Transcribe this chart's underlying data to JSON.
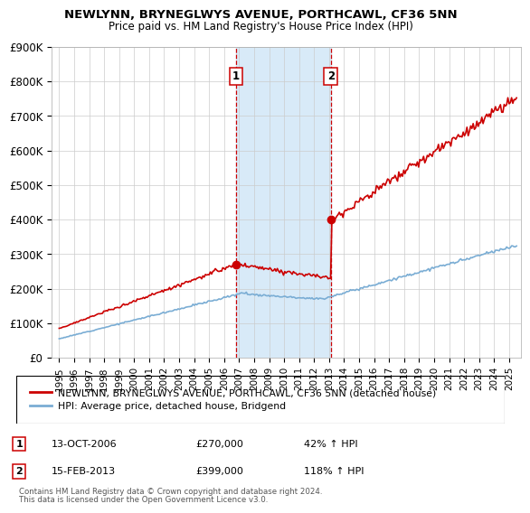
{
  "title": "NEWLYNN, BRYNEGLWYS AVENUE, PORTHCAWL, CF36 5NN",
  "subtitle": "Price paid vs. HM Land Registry's House Price Index (HPI)",
  "legend_line1": "NEWLYNN, BRYNEGLWYS AVENUE, PORTHCAWL, CF36 5NN (detached house)",
  "legend_line2": "HPI: Average price, detached house, Bridgend",
  "transaction1_label": "1",
  "transaction1_date": "13-OCT-2006",
  "transaction1_price": "£270,000",
  "transaction1_hpi": "42% ↑ HPI",
  "transaction1_year": 2006.79,
  "transaction1_value": 270000,
  "transaction2_label": "2",
  "transaction2_date": "15-FEB-2013",
  "transaction2_price": "£399,000",
  "transaction2_hpi": "118% ↑ HPI",
  "transaction2_year": 2013.12,
  "transaction2_value": 399000,
  "footnote1": "Contains HM Land Registry data © Crown copyright and database right 2024.",
  "footnote2": "This data is licensed under the Open Government Licence v3.0.",
  "hpi_color": "#7aadd4",
  "price_color": "#cc0000",
  "vline_color": "#cc0000",
  "shade_color": "#d8eaf8",
  "ylim": [
    0,
    900000
  ],
  "yticks": [
    0,
    100000,
    200000,
    300000,
    400000,
    500000,
    600000,
    700000,
    800000,
    900000
  ],
  "ytick_labels": [
    "£0",
    "£100K",
    "£200K",
    "£300K",
    "£400K",
    "£500K",
    "£600K",
    "£700K",
    "£800K",
    "£900K"
  ],
  "xlim_start": 1994.5,
  "xlim_end": 2025.8
}
